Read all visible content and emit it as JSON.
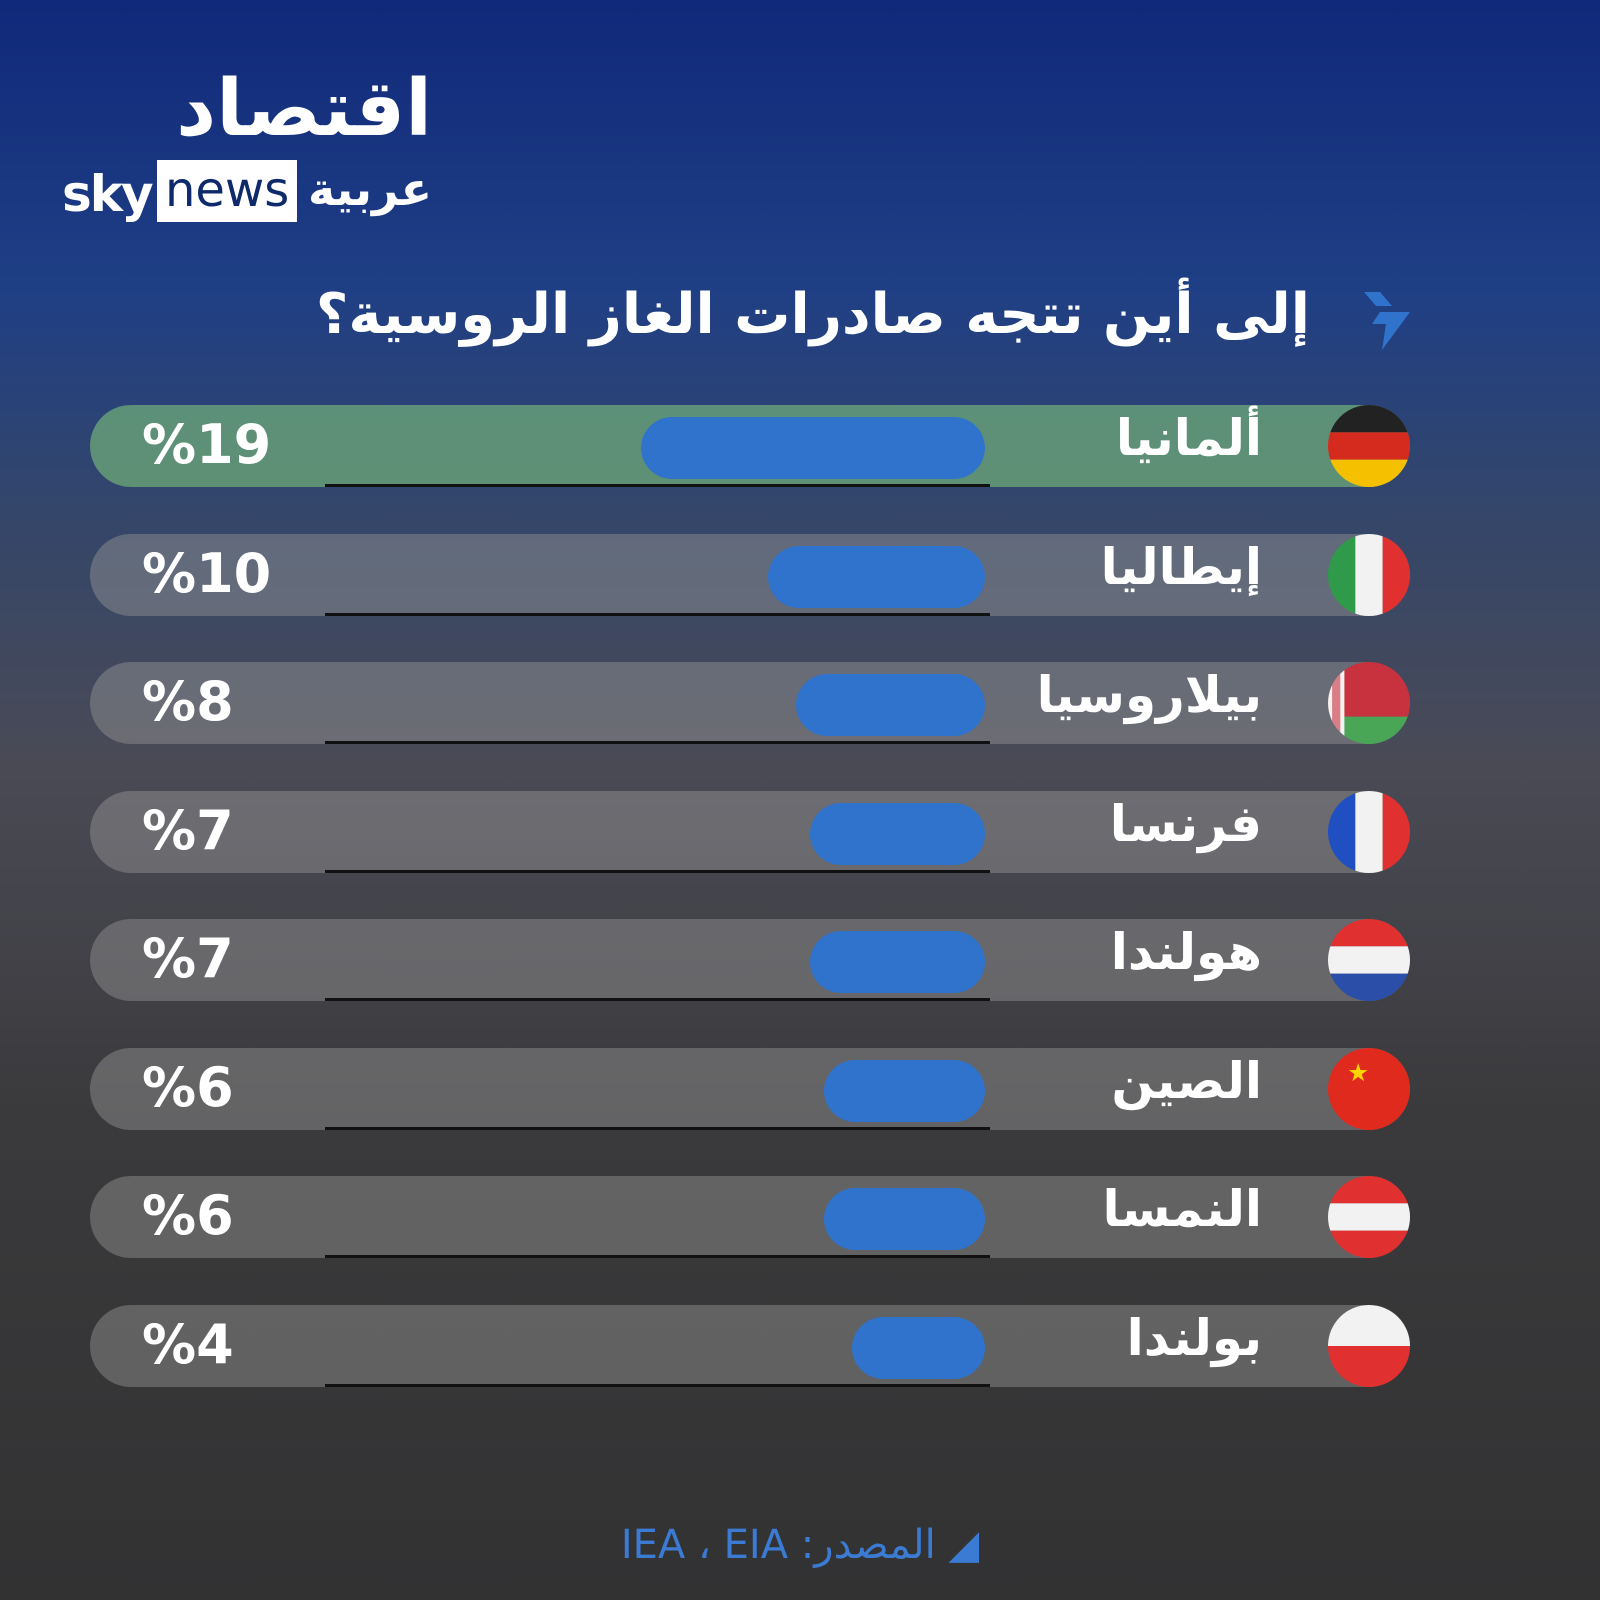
{
  "logo": {
    "arabic": "اقتصاد",
    "sky": "sky",
    "news": "news",
    "arabiya": "عربية"
  },
  "title": "إلى أين تتجه صادرات الغاز الروسية؟",
  "source": "◢ المصدر: IEA ، EIA",
  "colors": {
    "bar": "#2f73cc",
    "highlight": "#6eaa78",
    "source": "#3b7bd4"
  },
  "chart_data": {
    "type": "bar",
    "orientation": "horizontal",
    "title": "إلى أين تتجه صادرات الغاز الروسية؟",
    "categories": [
      "ألمانيا",
      "إيطاليا",
      "بيلاروسيا",
      "فرنسا",
      "هولندا",
      "الصين",
      "النمسا",
      "بولندا"
    ],
    "values": [
      19,
      10,
      8,
      7,
      7,
      6,
      6,
      4
    ],
    "labels": [
      "%19",
      "%10",
      "%8",
      "%7",
      "%7",
      "%6",
      "%6",
      "%4"
    ],
    "flags": [
      "germany-flag",
      "italy-flag",
      "belarus-flag",
      "france-flag",
      "netherlands-flag",
      "china-flag",
      "austria-flag",
      "poland-flag"
    ],
    "highlight": "ألمانيا"
  }
}
